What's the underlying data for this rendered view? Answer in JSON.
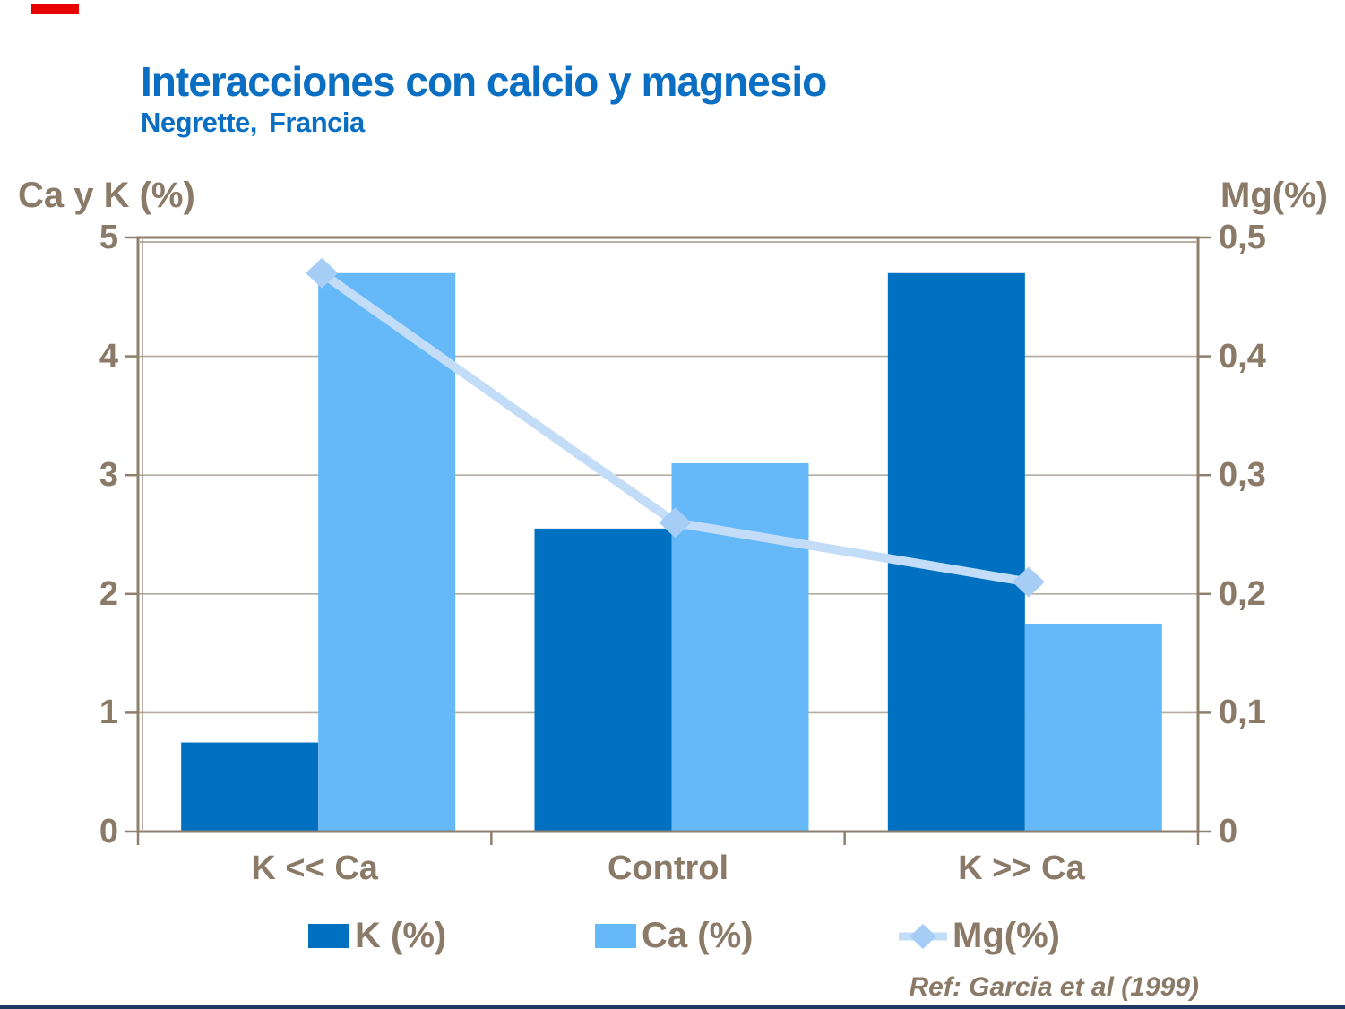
{
  "slide": {
    "title": "Interacciones con calcio y magnesio",
    "subtitle": "Negrette, Francia",
    "reference": "Ref: Garcia et al (1999)"
  },
  "colors": {
    "title_blue": "#0a6fc2",
    "text_taupe": "#8a7a67",
    "frame_taupe": "#8f7f6d",
    "gridline": "#b5aca0",
    "k_bar": "#0070c0",
    "ca_bar": "#66b9f8",
    "mg_line": "#c3ddf8",
    "mg_marker": "#a5cdf6",
    "accent_red": "#e60000",
    "bottom_navy": "#1f3864"
  },
  "chart_data": {
    "type": "bar",
    "subtype": "grouped bars with secondary-axis line",
    "title": "Interacciones con calcio y magnesio",
    "categories": [
      "K << Ca",
      "Control",
      "K >> Ca"
    ],
    "series": [
      {
        "name": "K (%)",
        "type": "bar",
        "axis": "left",
        "values": [
          0.75,
          2.55,
          4.7
        ]
      },
      {
        "name": "Ca (%)",
        "type": "bar",
        "axis": "left",
        "values": [
          4.7,
          3.1,
          1.75
        ]
      },
      {
        "name": "Mg(%)",
        "type": "line",
        "axis": "right",
        "marker": "diamond",
        "values": [
          0.47,
          0.26,
          0.21
        ]
      }
    ],
    "left_axis": {
      "title": "Ca y K (%)",
      "min": 0,
      "max": 5,
      "tick_labels": [
        "5",
        "4",
        "3",
        "2",
        "1",
        "0"
      ],
      "tick_values": [
        5,
        4,
        3,
        2,
        1,
        0
      ]
    },
    "right_axis": {
      "title": "Mg(%)",
      "min": 0,
      "max": 0.5,
      "tick_labels": [
        "0,5",
        "0,4",
        "0,3",
        "0,2",
        "0,1",
        "0"
      ],
      "tick_values": [
        0.5,
        0.4,
        0.3,
        0.2,
        0.1,
        0
      ]
    },
    "grid": true,
    "legend_position": "bottom",
    "legend": [
      "K (%)",
      "Ca (%)",
      "Mg(%)"
    ]
  }
}
